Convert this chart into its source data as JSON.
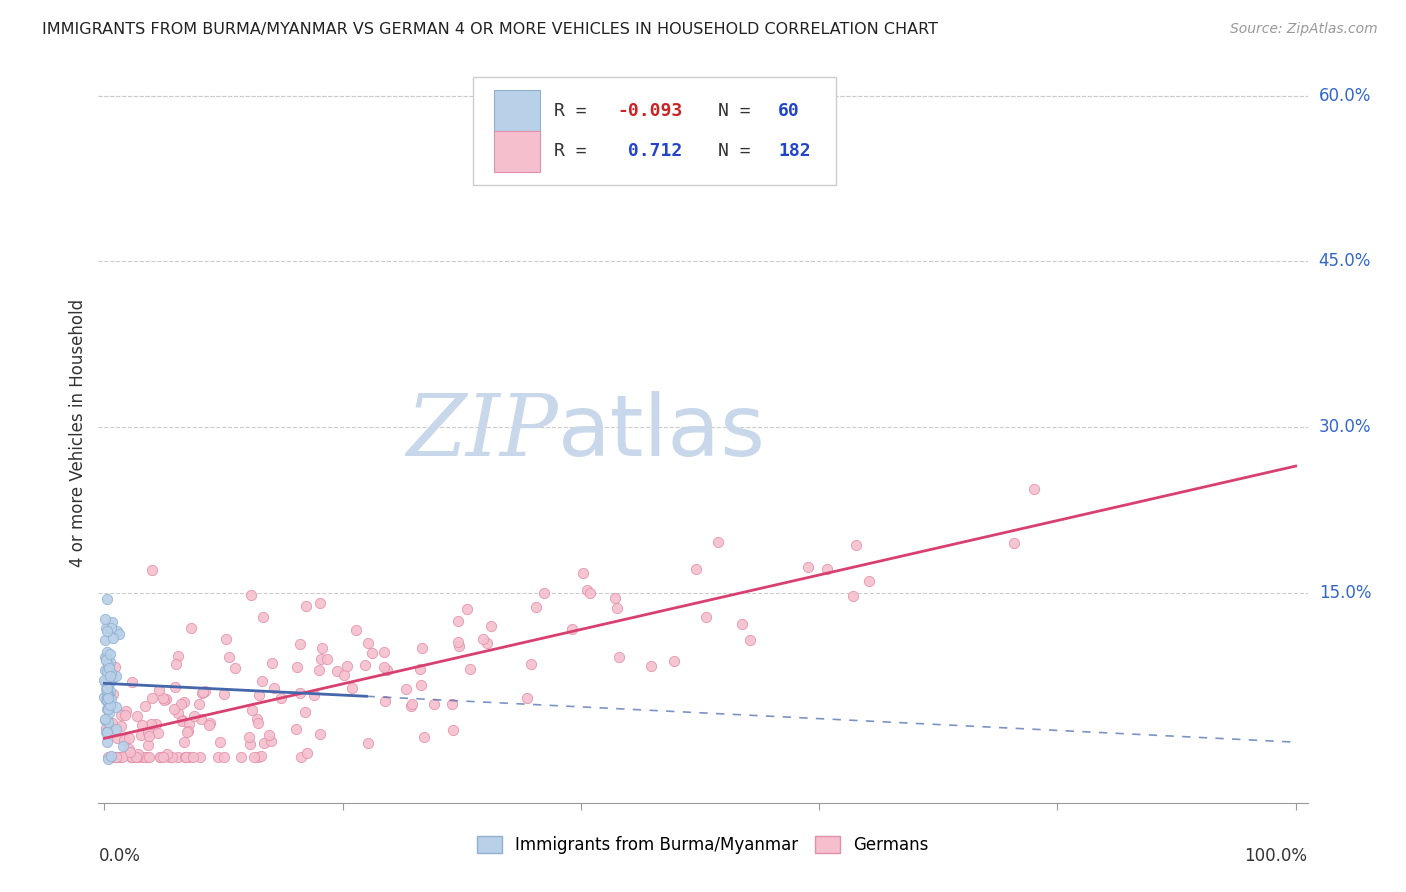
{
  "title": "IMMIGRANTS FROM BURMA/MYANMAR VS GERMAN 4 OR MORE VEHICLES IN HOUSEHOLD CORRELATION CHART",
  "source": "Source: ZipAtlas.com",
  "ylabel": "4 or more Vehicles in Household",
  "legend_blue_label": "Immigrants from Burma/Myanmar",
  "legend_pink_label": "Germans",
  "blue_R": -0.093,
  "blue_N": 60,
  "pink_R": 0.712,
  "pink_N": 182,
  "blue_color": "#b8d0e8",
  "blue_edge": "#90b0d0",
  "pink_color": "#f5bfce",
  "pink_edge": "#e090aa",
  "blue_line_color": "#4466aa",
  "pink_line_color": "#d84070",
  "watermark_zip": "ZIP",
  "watermark_atlas": "atlas",
  "watermark_color_zip": "#c8d8e8",
  "watermark_color_atlas": "#c8d8e8",
  "background_color": "#ffffff",
  "grid_color": "#cccccc",
  "ytick_vals": [
    0.0,
    0.15,
    0.3,
    0.45,
    0.6
  ],
  "ytick_labels": [
    "",
    "15.0%",
    "30.0%",
    "45.0%",
    "60.0%"
  ],
  "xlim": [
    -0.005,
    1.01
  ],
  "ylim": [
    -0.04,
    0.63
  ]
}
